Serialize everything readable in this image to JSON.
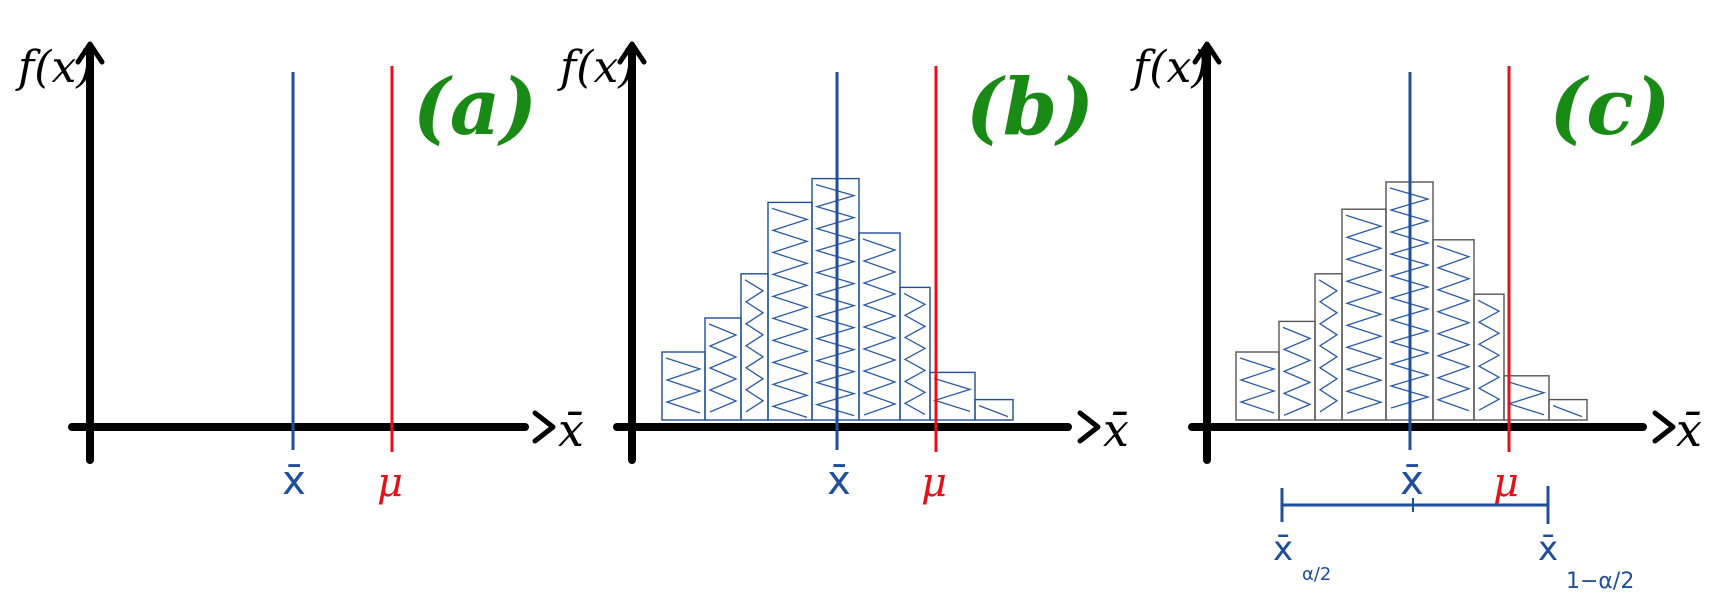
{
  "colors": {
    "sample_mean_line": "#1f4e9c",
    "population_mean_line": "#e0121b",
    "panel_label": "#1a8a16",
    "axis": "#000000",
    "hatch": "#2b5aa6",
    "bar_outline_b": "#1f4e9c",
    "bar_outline_c": "#555555"
  },
  "panels": [
    {
      "label": "(a)",
      "y_axis_label": "f(x)",
      "x_axis_label": "x̄",
      "sample_mean_label": "x̄",
      "population_mean_label": "μ",
      "histogram": false
    },
    {
      "label": "(b)",
      "y_axis_label": "f(x)",
      "x_axis_label": "x̄",
      "sample_mean_label": "x̄",
      "population_mean_label": "μ",
      "histogram": true,
      "bar_heights": [
        0.2,
        0.3,
        0.43,
        0.64,
        0.71,
        0.55,
        0.39,
        0.14,
        0.06
      ]
    },
    {
      "label": "(c)",
      "y_axis_label": "f(x)",
      "x_axis_label": "x̄",
      "sample_mean_label": "x̄",
      "population_mean_label": "μ",
      "histogram": true,
      "bar_heights": [
        0.2,
        0.29,
        0.43,
        0.62,
        0.7,
        0.53,
        0.37,
        0.13,
        0.06
      ],
      "interval": {
        "lower_label": "x̄",
        "lower_subscript": "α/2",
        "upper_label": "x̄",
        "upper_subscript": "1−α/2"
      }
    }
  ]
}
